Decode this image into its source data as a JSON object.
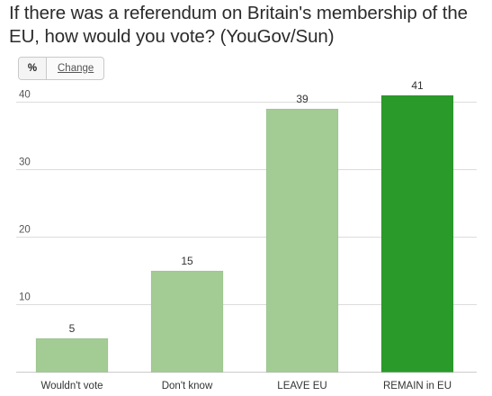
{
  "title": "If there was a referendum on Britain's membership of the EU, how would you vote? (YouGov/Sun)",
  "toggle": {
    "percent_label": "%",
    "change_label": "Change"
  },
  "chart_data": {
    "type": "bar",
    "categories": [
      "Wouldn't vote",
      "Don't know",
      "LEAVE EU",
      "REMAIN in EU"
    ],
    "values": [
      5,
      15,
      39,
      41
    ],
    "data_labels": [
      "5",
      "15",
      "39",
      "41"
    ],
    "yticks": [
      10,
      20,
      30,
      40
    ],
    "ylim": [
      0,
      43
    ],
    "grid": true,
    "bar_colors": [
      "#a3cc94",
      "#a3cc94",
      "#a3cc94",
      "#2a9b2a"
    ],
    "xlabel": "",
    "ylabel": ""
  }
}
